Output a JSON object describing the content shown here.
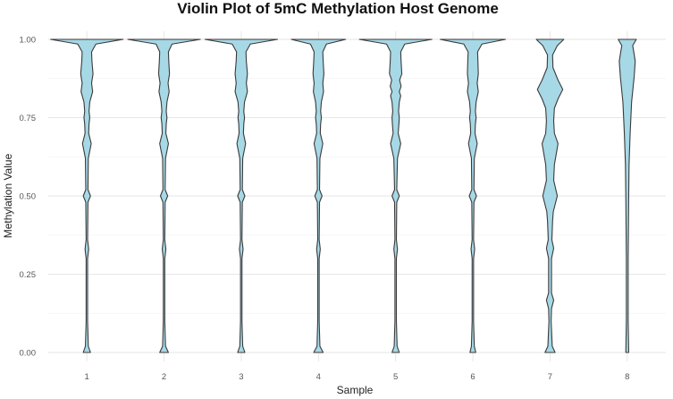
{
  "chart_data": {
    "type": "violin",
    "title": "Violin Plot of 5mC Methylation Host Genome",
    "xlabel": "Sample",
    "ylabel": "Methylation Value",
    "ylim": [
      0,
      1
    ],
    "y_ticks": [
      "0.00",
      "0.25",
      "0.50",
      "0.75",
      "1.00"
    ],
    "y_tick_values": [
      0,
      0.25,
      0.5,
      0.75,
      1
    ],
    "categories": [
      "1",
      "2",
      "3",
      "4",
      "5",
      "6",
      "7",
      "8"
    ],
    "fill_color": "#a7d8e6",
    "outline_color": "#3a3a3a",
    "grid": true,
    "legend": "none",
    "violins": [
      {
        "category": "1",
        "max_half_width": 0.47,
        "profile": [
          [
            0,
            0.1
          ],
          [
            0.02,
            0.04
          ],
          [
            0.1,
            0.02
          ],
          [
            0.3,
            0.02
          ],
          [
            0.33,
            0.05
          ],
          [
            0.36,
            0.02
          ],
          [
            0.48,
            0.03
          ],
          [
            0.5,
            0.1
          ],
          [
            0.52,
            0.03
          ],
          [
            0.62,
            0.04
          ],
          [
            0.667,
            0.12
          ],
          [
            0.7,
            0.05
          ],
          [
            0.73,
            0.06
          ],
          [
            0.75,
            0.08
          ],
          [
            0.77,
            0.06
          ],
          [
            0.8,
            0.08
          ],
          [
            0.833,
            0.16
          ],
          [
            0.86,
            0.13
          ],
          [
            0.89,
            0.17
          ],
          [
            0.93,
            0.14
          ],
          [
            0.96,
            0.13
          ],
          [
            0.985,
            0.25
          ],
          [
            1.0,
            1.0
          ]
        ]
      },
      {
        "category": "2",
        "max_half_width": 0.47,
        "profile": [
          [
            0,
            0.12
          ],
          [
            0.02,
            0.04
          ],
          [
            0.1,
            0.02
          ],
          [
            0.3,
            0.02
          ],
          [
            0.33,
            0.05
          ],
          [
            0.36,
            0.02
          ],
          [
            0.48,
            0.03
          ],
          [
            0.5,
            0.1
          ],
          [
            0.52,
            0.03
          ],
          [
            0.62,
            0.04
          ],
          [
            0.667,
            0.12
          ],
          [
            0.7,
            0.05
          ],
          [
            0.73,
            0.06
          ],
          [
            0.75,
            0.08
          ],
          [
            0.77,
            0.06
          ],
          [
            0.8,
            0.08
          ],
          [
            0.833,
            0.14
          ],
          [
            0.86,
            0.11
          ],
          [
            0.89,
            0.15
          ],
          [
            0.93,
            0.13
          ],
          [
            0.96,
            0.12
          ],
          [
            0.985,
            0.22
          ],
          [
            1.0,
            1.0
          ]
        ]
      },
      {
        "category": "3",
        "max_half_width": 0.47,
        "profile": [
          [
            0,
            0.1
          ],
          [
            0.02,
            0.04
          ],
          [
            0.1,
            0.02
          ],
          [
            0.3,
            0.02
          ],
          [
            0.33,
            0.05
          ],
          [
            0.36,
            0.02
          ],
          [
            0.48,
            0.03
          ],
          [
            0.5,
            0.1
          ],
          [
            0.52,
            0.03
          ],
          [
            0.62,
            0.04
          ],
          [
            0.667,
            0.12
          ],
          [
            0.7,
            0.06
          ],
          [
            0.73,
            0.07
          ],
          [
            0.75,
            0.09
          ],
          [
            0.77,
            0.07
          ],
          [
            0.8,
            0.09
          ],
          [
            0.833,
            0.17
          ],
          [
            0.86,
            0.14
          ],
          [
            0.89,
            0.17
          ],
          [
            0.93,
            0.14
          ],
          [
            0.96,
            0.13
          ],
          [
            0.985,
            0.25
          ],
          [
            1.0,
            1.0
          ]
        ]
      },
      {
        "category": "4",
        "max_half_width": 0.47,
        "profile": [
          [
            0,
            0.13
          ],
          [
            0.02,
            0.04
          ],
          [
            0.1,
            0.02
          ],
          [
            0.3,
            0.02
          ],
          [
            0.33,
            0.05
          ],
          [
            0.36,
            0.02
          ],
          [
            0.48,
            0.03
          ],
          [
            0.5,
            0.1
          ],
          [
            0.52,
            0.03
          ],
          [
            0.62,
            0.04
          ],
          [
            0.667,
            0.12
          ],
          [
            0.7,
            0.05
          ],
          [
            0.73,
            0.06
          ],
          [
            0.75,
            0.08
          ],
          [
            0.77,
            0.06
          ],
          [
            0.8,
            0.08
          ],
          [
            0.833,
            0.14
          ],
          [
            0.86,
            0.12
          ],
          [
            0.89,
            0.15
          ],
          [
            0.93,
            0.13
          ],
          [
            0.96,
            0.12
          ],
          [
            0.985,
            0.22
          ],
          [
            1.0,
            0.75
          ]
        ]
      },
      {
        "category": "5",
        "max_half_width": 0.47,
        "profile": [
          [
            0,
            0.1
          ],
          [
            0.02,
            0.04
          ],
          [
            0.1,
            0.02
          ],
          [
            0.3,
            0.02
          ],
          [
            0.33,
            0.05
          ],
          [
            0.36,
            0.02
          ],
          [
            0.48,
            0.03
          ],
          [
            0.5,
            0.1
          ],
          [
            0.52,
            0.03
          ],
          [
            0.62,
            0.05
          ],
          [
            0.667,
            0.14
          ],
          [
            0.7,
            0.07
          ],
          [
            0.73,
            0.09
          ],
          [
            0.75,
            0.1
          ],
          [
            0.77,
            0.08
          ],
          [
            0.8,
            0.1
          ],
          [
            0.82,
            0.14
          ],
          [
            0.833,
            0.1
          ],
          [
            0.85,
            0.15
          ],
          [
            0.87,
            0.11
          ],
          [
            0.89,
            0.17
          ],
          [
            0.93,
            0.15
          ],
          [
            0.96,
            0.14
          ],
          [
            0.985,
            0.25
          ],
          [
            1.0,
            1.0
          ]
        ]
      },
      {
        "category": "6",
        "max_half_width": 0.47,
        "profile": [
          [
            0,
            0.08
          ],
          [
            0.02,
            0.04
          ],
          [
            0.1,
            0.02
          ],
          [
            0.3,
            0.02
          ],
          [
            0.33,
            0.05
          ],
          [
            0.36,
            0.02
          ],
          [
            0.48,
            0.03
          ],
          [
            0.5,
            0.1
          ],
          [
            0.52,
            0.03
          ],
          [
            0.62,
            0.04
          ],
          [
            0.667,
            0.12
          ],
          [
            0.7,
            0.06
          ],
          [
            0.73,
            0.07
          ],
          [
            0.75,
            0.09
          ],
          [
            0.77,
            0.07
          ],
          [
            0.8,
            0.09
          ],
          [
            0.833,
            0.15
          ],
          [
            0.86,
            0.12
          ],
          [
            0.89,
            0.15
          ],
          [
            0.93,
            0.14
          ],
          [
            0.96,
            0.13
          ],
          [
            0.985,
            0.25
          ],
          [
            1.0,
            0.9
          ]
        ]
      },
      {
        "category": "7",
        "max_half_width": 0.47,
        "profile": [
          [
            0,
            0.14
          ],
          [
            0.02,
            0.06
          ],
          [
            0.1,
            0.03
          ],
          [
            0.14,
            0.04
          ],
          [
            0.167,
            0.1
          ],
          [
            0.19,
            0.04
          ],
          [
            0.3,
            0.04
          ],
          [
            0.333,
            0.1
          ],
          [
            0.36,
            0.05
          ],
          [
            0.42,
            0.07
          ],
          [
            0.45,
            0.09
          ],
          [
            0.5,
            0.2
          ],
          [
            0.55,
            0.1
          ],
          [
            0.6,
            0.12
          ],
          [
            0.667,
            0.22
          ],
          [
            0.7,
            0.12
          ],
          [
            0.74,
            0.1
          ],
          [
            0.78,
            0.12
          ],
          [
            0.81,
            0.22
          ],
          [
            0.84,
            0.35
          ],
          [
            0.87,
            0.22
          ],
          [
            0.91,
            0.08
          ],
          [
            0.95,
            0.07
          ],
          [
            0.98,
            0.2
          ],
          [
            1.0,
            0.38
          ]
        ]
      },
      {
        "category": "8",
        "max_half_width": 0.47,
        "profile": [
          [
            0,
            0.04
          ],
          [
            0.1,
            0.025
          ],
          [
            0.3,
            0.025
          ],
          [
            0.5,
            0.04
          ],
          [
            0.6,
            0.05
          ],
          [
            0.7,
            0.08
          ],
          [
            0.8,
            0.12
          ],
          [
            0.88,
            0.19
          ],
          [
            0.93,
            0.22
          ],
          [
            0.96,
            0.18
          ],
          [
            0.98,
            0.15
          ],
          [
            1.0,
            0.25
          ]
        ]
      }
    ]
  }
}
